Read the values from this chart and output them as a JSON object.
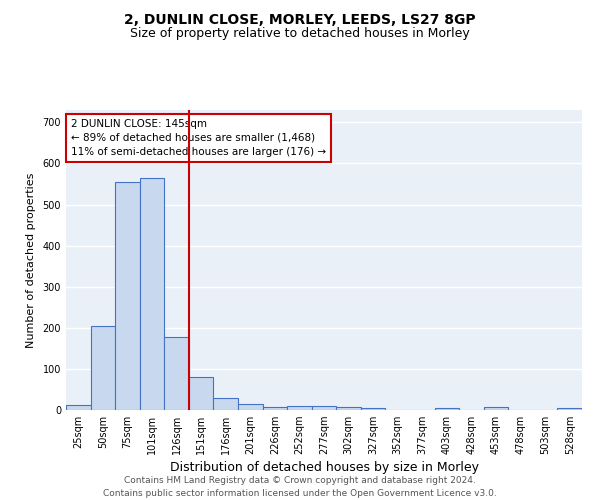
{
  "title1": "2, DUNLIN CLOSE, MORLEY, LEEDS, LS27 8GP",
  "title2": "Size of property relative to detached houses in Morley",
  "xlabel": "Distribution of detached houses by size in Morley",
  "ylabel": "Number of detached properties",
  "categories": [
    "25sqm",
    "50sqm",
    "75sqm",
    "101sqm",
    "126sqm",
    "151sqm",
    "176sqm",
    "201sqm",
    "226sqm",
    "252sqm",
    "277sqm",
    "302sqm",
    "327sqm",
    "352sqm",
    "377sqm",
    "403sqm",
    "428sqm",
    "453sqm",
    "478sqm",
    "503sqm",
    "528sqm"
  ],
  "values": [
    13,
    205,
    555,
    565,
    178,
    80,
    30,
    15,
    8,
    10,
    10,
    8,
    5,
    0,
    0,
    5,
    0,
    7,
    0,
    0,
    5
  ],
  "bar_color": "#c8d9ef",
  "bar_edge_color": "#4472c4",
  "vline_color": "#cc0000",
  "annotation_text": "2 DUNLIN CLOSE: 145sqm\n← 89% of detached houses are smaller (1,468)\n11% of semi-detached houses are larger (176) →",
  "annotation_box_color": "white",
  "annotation_box_edge": "#cc0000",
  "footer": "Contains HM Land Registry data © Crown copyright and database right 2024.\nContains public sector information licensed under the Open Government Licence v3.0.",
  "ylim": [
    0,
    730
  ],
  "yticks": [
    0,
    100,
    200,
    300,
    400,
    500,
    600,
    700
  ],
  "bg_color": "#eaf0f8",
  "grid_color": "white",
  "title1_fontsize": 10,
  "title2_fontsize": 9,
  "xlabel_fontsize": 9,
  "ylabel_fontsize": 8,
  "tick_fontsize": 7,
  "footer_fontsize": 6.5,
  "annotation_fontsize": 7.5
}
